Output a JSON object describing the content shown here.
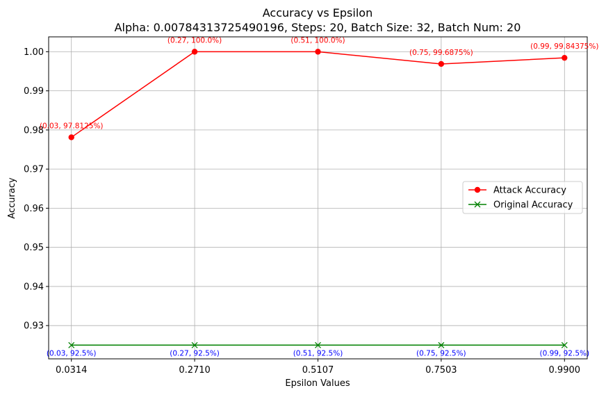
{
  "chart_data": {
    "type": "line",
    "title": "Accuracy vs Epsilon",
    "subtitle": "Alpha: 0.00784313725490196, Steps: 20, Batch Size: 32, Batch Num: 20",
    "xlabel": "Epsilon Values",
    "ylabel": "Accuracy",
    "x": [
      0.0314,
      0.271,
      0.5107,
      0.7503,
      0.99
    ],
    "x_tick_labels": [
      "0.0314",
      "0.2710",
      "0.5107",
      "0.7503",
      "0.9900"
    ],
    "y_ticks": [
      0.93,
      0.94,
      0.95,
      0.96,
      0.97,
      0.98,
      0.99,
      1.0
    ],
    "y_tick_labels": [
      "0.93",
      "0.94",
      "0.95",
      "0.96",
      "0.97",
      "0.98",
      "0.99",
      "1.00"
    ],
    "ylim": [
      0.9215,
      1.0038
    ],
    "xlim": [
      -0.0128,
      1.0342
    ],
    "grid": true,
    "legend_position": "center-right",
    "series": [
      {
        "name": "Attack Accuracy",
        "color": "#ff0000",
        "marker": "circle",
        "values": [
          0.978125,
          1.0,
          1.0,
          0.996875,
          0.9984375
        ],
        "annotations": [
          "(0.03, 97.8125%)",
          "(0.27, 100.0%)",
          "(0.51, 100.0%)",
          "(0.75, 99.6875%)",
          "(0.99, 99.84375%)"
        ]
      },
      {
        "name": "Original Accuracy",
        "color": "#008000",
        "marker": "x",
        "annotation_color": "#0000ff",
        "values": [
          0.925,
          0.925,
          0.925,
          0.925,
          0.925
        ],
        "annotations": [
          "(0.03, 92.5%)",
          "(0.27, 92.5%)",
          "(0.51, 92.5%)",
          "(0.75, 92.5%)",
          "(0.99, 92.5%)"
        ]
      }
    ]
  }
}
